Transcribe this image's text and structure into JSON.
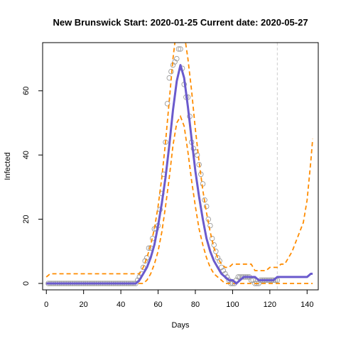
{
  "chart_data": {
    "type": "line",
    "title": "New Brunswick Start:  2020-01-25   Current date:  2020-05-27",
    "xlabel": "Days",
    "ylabel": "Infected",
    "xlim": [
      -2,
      146
    ],
    "ylim": [
      -2,
      75
    ],
    "xticks": [
      0,
      20,
      40,
      60,
      80,
      100,
      120,
      140
    ],
    "yticks": [
      0,
      20,
      40,
      60
    ],
    "current_day": 124,
    "colors": {
      "fit": "#6a5acd",
      "bounds": "#ff8c00",
      "observed": "#9a9a9a",
      "current": "#cccccc"
    },
    "observed": {
      "x": [
        1,
        2,
        3,
        4,
        5,
        6,
        7,
        8,
        9,
        10,
        11,
        12,
        13,
        14,
        15,
        16,
        17,
        18,
        19,
        20,
        21,
        22,
        23,
        24,
        25,
        26,
        27,
        28,
        29,
        30,
        31,
        32,
        33,
        34,
        35,
        36,
        37,
        38,
        39,
        40,
        41,
        42,
        43,
        44,
        45,
        46,
        47,
        48,
        49,
        50,
        51,
        52,
        53,
        54,
        55,
        56,
        57,
        58,
        59,
        60,
        61,
        62,
        63,
        64,
        65,
        66,
        67,
        68,
        69,
        70,
        71,
        72,
        73,
        74,
        75,
        76,
        77,
        78,
        79,
        80,
        81,
        82,
        83,
        84,
        85,
        86,
        87,
        88,
        89,
        90,
        91,
        92,
        93,
        94,
        95,
        96,
        97,
        98,
        99,
        100,
        101,
        102,
        103,
        104,
        105,
        106,
        107,
        108,
        109,
        110,
        111,
        112,
        113,
        114,
        115,
        116,
        117,
        118,
        119,
        120,
        121,
        122,
        123,
        124
      ],
      "y": [
        0,
        0,
        0,
        0,
        0,
        0,
        0,
        0,
        0,
        0,
        0,
        0,
        0,
        0,
        0,
        0,
        0,
        0,
        0,
        0,
        0,
        0,
        0,
        0,
        0,
        0,
        0,
        0,
        0,
        0,
        0,
        0,
        0,
        0,
        0,
        0,
        0,
        0,
        0,
        0,
        0,
        0,
        0,
        0,
        0,
        0,
        0,
        0,
        1,
        2,
        3,
        5,
        7,
        8,
        11,
        11,
        14,
        17,
        17,
        18,
        23,
        28,
        34,
        44,
        56,
        64,
        66,
        68,
        69,
        70,
        73,
        73,
        67,
        62,
        58,
        58,
        52,
        44,
        42,
        41,
        40,
        37,
        34,
        31,
        26,
        24,
        20,
        18,
        14,
        12,
        10,
        8,
        7,
        5,
        4,
        3,
        2,
        1,
        0,
        0,
        0,
        1,
        2,
        2,
        2,
        2,
        2,
        2,
        2,
        1,
        1,
        0,
        0,
        0,
        1,
        1,
        1,
        1,
        1,
        1,
        1,
        1,
        1,
        1
      ]
    },
    "series": [
      {
        "x": [
          0,
          2,
          4,
          6,
          8,
          10,
          12,
          14,
          16,
          18,
          20,
          22,
          24,
          26,
          28,
          30,
          32,
          34,
          36,
          38,
          40,
          42,
          44,
          46,
          48,
          50,
          52,
          54,
          56,
          58,
          60,
          62,
          64,
          66,
          68,
          70,
          72,
          74,
          76,
          78,
          80,
          82,
          84,
          86,
          88,
          90,
          92,
          94,
          96,
          98,
          100,
          102,
          104,
          106,
          108,
          110,
          112,
          114,
          116,
          118,
          120,
          122,
          124,
          126,
          128,
          130,
          132,
          134,
          136,
          138,
          140,
          142,
          143
        ],
        "y": [
          0,
          0,
          0,
          0,
          0,
          0,
          0,
          0,
          0,
          0,
          0,
          0,
          0,
          0,
          0,
          0,
          0,
          0,
          0,
          0,
          0,
          0,
          0,
          0,
          0,
          1,
          3,
          5,
          8,
          12,
          18,
          25,
          33,
          43,
          54,
          63,
          68,
          64,
          55,
          45,
          35,
          27,
          20,
          14,
          10,
          7,
          5,
          3,
          2,
          1,
          1,
          0,
          1,
          2,
          2,
          2,
          2,
          1,
          1,
          1,
          1,
          1,
          2,
          2,
          2,
          2,
          2,
          2,
          2,
          2,
          2,
          3,
          3
        ]
      },
      {
        "x": [
          0,
          2,
          4,
          6,
          8,
          10,
          12,
          14,
          16,
          18,
          20,
          22,
          24,
          26,
          28,
          30,
          32,
          34,
          36,
          38,
          40,
          42,
          44,
          46,
          48,
          50,
          52,
          54,
          56,
          58,
          60,
          62,
          64,
          66,
          68,
          70,
          72,
          74,
          76,
          78,
          80,
          82,
          84,
          86,
          88,
          90,
          92,
          94,
          96,
          98,
          100,
          102,
          104,
          106,
          108,
          110,
          112,
          114,
          116,
          118,
          120,
          122,
          124,
          126,
          128,
          130,
          132,
          134,
          136,
          138,
          140,
          142,
          143
        ],
        "y": [
          2,
          3,
          3,
          3,
          3,
          3,
          3,
          3,
          3,
          3,
          3,
          3,
          3,
          3,
          3,
          3,
          3,
          3,
          3,
          3,
          3,
          3,
          3,
          3,
          3,
          3,
          5,
          8,
          12,
          17,
          24,
          33,
          44,
          57,
          70,
          80,
          82,
          78,
          70,
          60,
          48,
          38,
          29,
          22,
          16,
          11,
          8,
          6,
          5,
          5,
          6,
          6,
          6,
          6,
          6,
          6,
          4,
          4,
          4,
          4,
          5,
          5,
          5,
          6,
          6,
          8,
          10,
          13,
          16,
          19,
          26,
          38,
          45
        ]
      },
      {
        "x": [
          0,
          2,
          4,
          6,
          8,
          10,
          12,
          14,
          16,
          18,
          20,
          22,
          24,
          26,
          28,
          30,
          32,
          34,
          36,
          38,
          40,
          42,
          44,
          46,
          48,
          50,
          52,
          54,
          56,
          58,
          60,
          62,
          64,
          66,
          68,
          70,
          72,
          74,
          76,
          78,
          80,
          82,
          84,
          86,
          88,
          90,
          92,
          94,
          96,
          98,
          100,
          102,
          104,
          106,
          108,
          110,
          112,
          114,
          116,
          118,
          120,
          122,
          124,
          126,
          128,
          130,
          132,
          134,
          136,
          138,
          140,
          142,
          143
        ],
        "y": [
          0,
          0,
          0,
          0,
          0,
          0,
          0,
          0,
          0,
          0,
          0,
          0,
          0,
          0,
          0,
          0,
          0,
          0,
          0,
          0,
          0,
          0,
          0,
          0,
          0,
          0,
          0,
          1,
          3,
          6,
          10,
          16,
          24,
          33,
          43,
          50,
          52,
          49,
          41,
          32,
          24,
          17,
          12,
          8,
          5,
          3,
          2,
          1,
          0,
          0,
          0,
          0,
          0,
          0,
          0,
          0,
          0,
          0,
          0,
          0,
          0,
          0,
          0,
          0,
          0,
          0,
          0,
          0,
          0,
          0,
          0,
          0,
          0
        ]
      }
    ]
  }
}
